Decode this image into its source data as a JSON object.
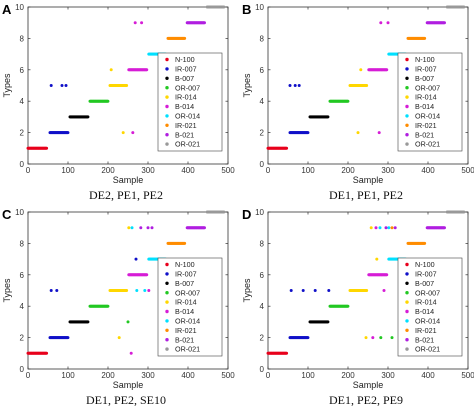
{
  "chart_data": [
    {
      "type": "scatter",
      "letter": "A",
      "caption": "DE2, PE1, PE2",
      "xlabel": "Sample",
      "ylabel": "Types",
      "xlim": [
        0,
        500
      ],
      "ylim": [
        0,
        10
      ],
      "xticks": [
        0,
        100,
        200,
        300,
        400,
        500
      ],
      "yticks": [
        0,
        2,
        4,
        6,
        8,
        10
      ],
      "legend_position": "right",
      "series": [
        {
          "name": "N-100",
          "color": "#e8001c",
          "y": 1,
          "range": [
            0,
            48
          ],
          "outliers": []
        },
        {
          "name": "IR-007",
          "color": "#1010c8",
          "y": 2,
          "range": [
            55,
            100
          ],
          "outliers": [
            [
              58,
              5
            ],
            [
              85,
              5
            ],
            [
              95,
              5
            ]
          ]
        },
        {
          "name": "B-007",
          "color": "#000000",
          "y": 3,
          "range": [
            105,
            150
          ],
          "outliers": []
        },
        {
          "name": "OR-007",
          "color": "#22c822",
          "y": 4,
          "range": [
            155,
            200
          ],
          "outliers": []
        },
        {
          "name": "IR-014",
          "color": "#ffd700",
          "y": 5,
          "range": [
            205,
            248
          ],
          "outliers": [
            [
              238,
              2
            ],
            [
              208,
              6
            ]
          ]
        },
        {
          "name": "B-014",
          "color": "#d61dd6",
          "y": 6,
          "range": [
            252,
            298
          ],
          "outliers": [
            [
              262,
              2
            ],
            [
              268,
              9
            ],
            [
              284,
              9
            ]
          ]
        },
        {
          "name": "OR-014",
          "color": "#00e0ff",
          "y": 7,
          "range": [
            302,
            345
          ],
          "outliers": []
        },
        {
          "name": "IR-021",
          "color": "#ff8c00",
          "y": 8,
          "range": [
            350,
            392
          ],
          "outliers": []
        },
        {
          "name": "B-021",
          "color": "#b01ee0",
          "y": 9,
          "range": [
            398,
            442
          ],
          "outliers": []
        },
        {
          "name": "OR-021",
          "color": "#999999",
          "y": 10,
          "range": [
            448,
            490
          ],
          "outliers": []
        }
      ]
    },
    {
      "type": "scatter",
      "letter": "B",
      "caption": "DE1, PE1, PE2",
      "xlabel": "Sample",
      "ylabel": "Types",
      "xlim": [
        0,
        500
      ],
      "ylim": [
        0,
        10
      ],
      "xticks": [
        0,
        100,
        200,
        300,
        400,
        500
      ],
      "yticks": [
        0,
        2,
        4,
        6,
        8,
        10
      ],
      "legend_position": "right",
      "series": [
        {
          "name": "N-100",
          "color": "#e8001c",
          "y": 1,
          "range": [
            0,
            48
          ],
          "outliers": []
        },
        {
          "name": "IR-007",
          "color": "#1010c8",
          "y": 2,
          "range": [
            55,
            100
          ],
          "outliers": [
            [
              55,
              5
            ],
            [
              68,
              5
            ],
            [
              78,
              5
            ]
          ]
        },
        {
          "name": "B-007",
          "color": "#000000",
          "y": 3,
          "range": [
            105,
            150
          ],
          "outliers": []
        },
        {
          "name": "OR-007",
          "color": "#22c822",
          "y": 4,
          "range": [
            155,
            200
          ],
          "outliers": []
        },
        {
          "name": "IR-014",
          "color": "#ffd700",
          "y": 5,
          "range": [
            205,
            248
          ],
          "outliers": [
            [
              225,
              2
            ],
            [
              232,
              6
            ]
          ]
        },
        {
          "name": "B-014",
          "color": "#d61dd6",
          "y": 6,
          "range": [
            252,
            298
          ],
          "outliers": [
            [
              278,
              2
            ],
            [
              282,
              9
            ],
            [
              300,
              9
            ]
          ]
        },
        {
          "name": "OR-014",
          "color": "#00e0ff",
          "y": 7,
          "range": [
            302,
            345
          ],
          "outliers": []
        },
        {
          "name": "IR-021",
          "color": "#ff8c00",
          "y": 8,
          "range": [
            350,
            392
          ],
          "outliers": []
        },
        {
          "name": "B-021",
          "color": "#b01ee0",
          "y": 9,
          "range": [
            398,
            442
          ],
          "outliers": []
        },
        {
          "name": "OR-021",
          "color": "#999999",
          "y": 10,
          "range": [
            448,
            490
          ],
          "outliers": []
        }
      ]
    },
    {
      "type": "scatter",
      "letter": "C",
      "caption": "DE1, PE2, SE10",
      "xlabel": "Sample",
      "ylabel": "Types",
      "xlim": [
        0,
        500
      ],
      "ylim": [
        0,
        10
      ],
      "xticks": [
        0,
        100,
        200,
        300,
        400,
        500
      ],
      "yticks": [
        0,
        2,
        4,
        6,
        8,
        10
      ],
      "legend_position": "right",
      "series": [
        {
          "name": "N-100",
          "color": "#e8001c",
          "y": 1,
          "range": [
            0,
            48
          ],
          "outliers": []
        },
        {
          "name": "IR-007",
          "color": "#1010c8",
          "y": 2,
          "range": [
            55,
            100
          ],
          "outliers": [
            [
              58,
              5
            ],
            [
              72,
              5
            ],
            [
              270,
              7
            ]
          ]
        },
        {
          "name": "B-007",
          "color": "#000000",
          "y": 3,
          "range": [
            105,
            150
          ],
          "outliers": []
        },
        {
          "name": "OR-007",
          "color": "#22c822",
          "y": 4,
          "range": [
            155,
            200
          ],
          "outliers": [
            [
              250,
              3
            ]
          ]
        },
        {
          "name": "IR-014",
          "color": "#ffd700",
          "y": 5,
          "range": [
            205,
            248
          ],
          "outliers": [
            [
              228,
              2
            ],
            [
              252,
              9
            ]
          ]
        },
        {
          "name": "B-014",
          "color": "#d61dd6",
          "y": 6,
          "range": [
            252,
            298
          ],
          "outliers": [
            [
              258,
              1
            ],
            [
              302,
              5
            ]
          ]
        },
        {
          "name": "OR-014",
          "color": "#00e0ff",
          "y": 7,
          "range": [
            302,
            345
          ],
          "outliers": [
            [
              260,
              9
            ],
            [
              272,
              5
            ],
            [
              292,
              5
            ]
          ]
        },
        {
          "name": "IR-021",
          "color": "#ff8c00",
          "y": 8,
          "range": [
            350,
            392
          ],
          "outliers": []
        },
        {
          "name": "B-021",
          "color": "#b01ee0",
          "y": 9,
          "range": [
            398,
            442
          ],
          "outliers": [
            [
              282,
              9
            ],
            [
              300,
              9
            ],
            [
              310,
              9
            ]
          ]
        },
        {
          "name": "OR-021",
          "color": "#999999",
          "y": 10,
          "range": [
            448,
            490
          ],
          "outliers": []
        }
      ]
    },
    {
      "type": "scatter",
      "letter": "D",
      "caption": "DE1, PE2, PE9",
      "xlabel": "Sample",
      "ylabel": "Types",
      "xlim": [
        0,
        500
      ],
      "ylim": [
        0,
        10
      ],
      "xticks": [
        0,
        100,
        200,
        300,
        400,
        500
      ],
      "yticks": [
        0,
        2,
        4,
        6,
        8,
        10
      ],
      "legend_position": "right",
      "series": [
        {
          "name": "N-100",
          "color": "#e8001c",
          "y": 1,
          "range": [
            0,
            48
          ],
          "outliers": []
        },
        {
          "name": "IR-007",
          "color": "#1010c8",
          "y": 2,
          "range": [
            55,
            100
          ],
          "outliers": [
            [
              58,
              5
            ],
            [
              88,
              5
            ],
            [
              118,
              5
            ],
            [
              152,
              5
            ]
          ]
        },
        {
          "name": "B-007",
          "color": "#000000",
          "y": 3,
          "range": [
            105,
            150
          ],
          "outliers": [
            [
              215,
              5
            ]
          ]
        },
        {
          "name": "OR-007",
          "color": "#22c822",
          "y": 4,
          "range": [
            155,
            200
          ],
          "outliers": [
            [
              282,
              2
            ],
            [
              310,
              2
            ]
          ]
        },
        {
          "name": "IR-014",
          "color": "#ffd700",
          "y": 5,
          "range": [
            205,
            248
          ],
          "outliers": [
            [
              245,
              2
            ],
            [
              258,
              9
            ],
            [
              272,
              7
            ]
          ]
        },
        {
          "name": "B-014",
          "color": "#d61dd6",
          "y": 6,
          "range": [
            252,
            298
          ],
          "outliers": [
            [
              262,
              2
            ],
            [
              270,
              9
            ],
            [
              290,
              5
            ]
          ]
        },
        {
          "name": "OR-014",
          "color": "#00e0ff",
          "y": 7,
          "range": [
            302,
            345
          ],
          "outliers": [
            [
              280,
              9
            ],
            [
              302,
              9
            ]
          ]
        },
        {
          "name": "IR-021",
          "color": "#ff8c00",
          "y": 8,
          "range": [
            350,
            392
          ],
          "outliers": [
            [
              310,
              9
            ]
          ]
        },
        {
          "name": "B-021",
          "color": "#b01ee0",
          "y": 9,
          "range": [
            398,
            442
          ],
          "outliers": [
            [
              295,
              9
            ],
            [
              318,
              9
            ]
          ]
        },
        {
          "name": "OR-021",
          "color": "#999999",
          "y": 10,
          "range": [
            448,
            490
          ],
          "outliers": []
        }
      ]
    }
  ]
}
